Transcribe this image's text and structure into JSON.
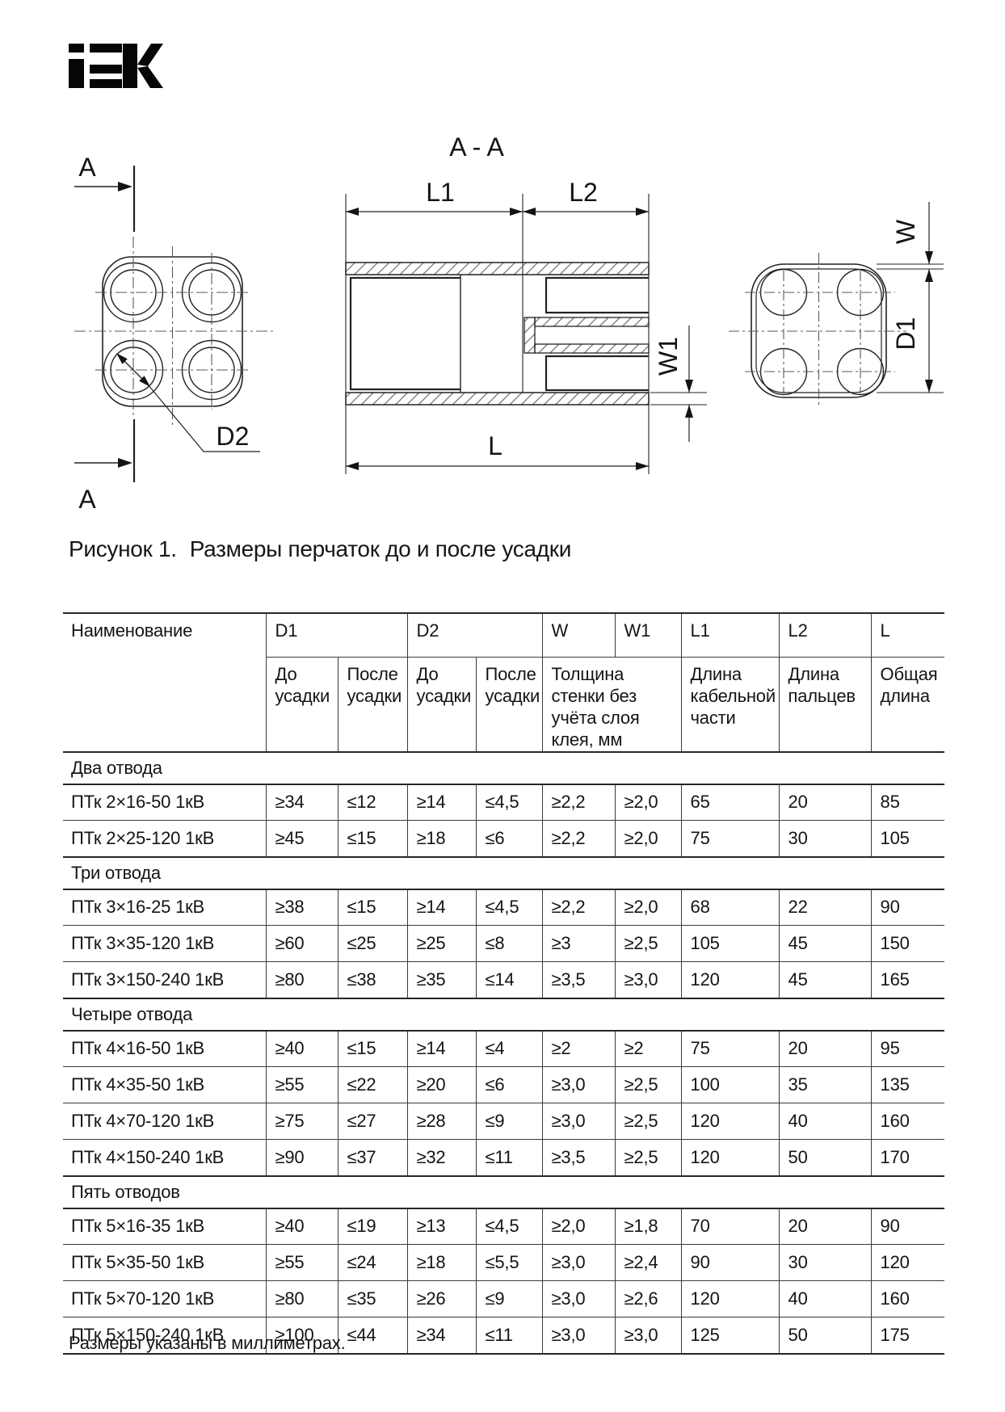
{
  "logo": {
    "brand": "IEK"
  },
  "figure": {
    "labels": {
      "section": "A",
      "view": "A - A",
      "l1": "L1",
      "l2": "L2",
      "l": "L",
      "w": "W",
      "w1": "W1",
      "d1": "D1",
      "d2": "D2"
    },
    "caption_prefix": "Рисунок 1.",
    "caption_text": "Размеры перчаток до и после усадки"
  },
  "table": {
    "header": {
      "name": "Наименование",
      "codes": {
        "d1": "D1",
        "d2": "D2",
        "w": "W",
        "w1": "W1",
        "l1": "L1",
        "l2": "L2",
        "l": "L"
      },
      "before": "До усадки",
      "after": "После усадки",
      "wall_note": "Толщина стенки без учёта слоя клея, мм",
      "cable_part": "Длина кабельной части",
      "fingers": "Длина пальцев",
      "total": "Общая длина"
    },
    "sections": [
      {
        "title": "Два отвода",
        "rows": [
          {
            "name": "ПТк 2×16-50 1кВ",
            "values": [
              "≥34",
              "≤12",
              "≥14",
              "≤4,5",
              "≥2,2",
              "≥2,0",
              "65",
              "20",
              "85"
            ]
          },
          {
            "name": "ПТк 2×25-120 1кВ",
            "values": [
              "≥45",
              "≤15",
              "≥18",
              "≤6",
              "≥2,2",
              "≥2,0",
              "75",
              "30",
              "105"
            ]
          }
        ]
      },
      {
        "title": "Три отвода",
        "rows": [
          {
            "name": "ПТк 3×16-25 1кВ",
            "values": [
              "≥38",
              "≤15",
              "≥14",
              "≤4,5",
              "≥2,2",
              "≥2,0",
              "68",
              "22",
              "90"
            ]
          },
          {
            "name": "ПТк 3×35-120 1кВ",
            "values": [
              "≥60",
              "≤25",
              "≥25",
              "≤8",
              "≥3",
              "≥2,5",
              "105",
              "45",
              "150"
            ]
          },
          {
            "name": "ПТк 3×150-240 1кВ",
            "values": [
              "≥80",
              "≤38",
              "≥35",
              "≤14",
              "≥3,5",
              "≥3,0",
              "120",
              "45",
              "165"
            ]
          }
        ]
      },
      {
        "title": "Четыре отвода",
        "rows": [
          {
            "name": "ПТк 4×16-50 1кВ",
            "values": [
              "≥40",
              "≤15",
              "≥14",
              "≤4",
              "≥2",
              "≥2",
              "75",
              "20",
              "95"
            ]
          },
          {
            "name": "ПТк 4×35-50 1кВ",
            "values": [
              "≥55",
              "≤22",
              "≥20",
              "≤6",
              "≥3,0",
              "≥2,5",
              "100",
              "35",
              "135"
            ]
          },
          {
            "name": "ПТк 4×70-120 1кВ",
            "values": [
              "≥75",
              "≤27",
              "≥28",
              "≤9",
              "≥3,0",
              "≥2,5",
              "120",
              "40",
              "160"
            ]
          },
          {
            "name": "ПТк 4×150-240 1кВ",
            "values": [
              "≥90",
              "≤37",
              "≥32",
              "≤11",
              "≥3,5",
              "≥2,5",
              "120",
              "50",
              "170"
            ]
          }
        ]
      },
      {
        "title": "Пять отводов",
        "rows": [
          {
            "name": "ПТк 5×16-35 1кВ",
            "values": [
              "≥40",
              "≤19",
              "≥13",
              "≤4,5",
              "≥2,0",
              "≥1,8",
              "70",
              "20",
              "90"
            ]
          },
          {
            "name": "ПТк 5×35-50 1кВ",
            "values": [
              "≥55",
              "≤24",
              "≥18",
              "≤5,5",
              "≥3,0",
              "≥2,4",
              "90",
              "30",
              "120"
            ]
          },
          {
            "name": "ПТк 5×70-120 1кВ",
            "values": [
              "≥80",
              "≤35",
              "≥26",
              "≤9",
              "≥3,0",
              "≥2,6",
              "120",
              "40",
              "160"
            ]
          },
          {
            "name": "ПТк 5×150-240 1кВ",
            "values": [
              "≥100",
              "≤44",
              "≥34",
              "≤11",
              "≥3,0",
              "≥3,0",
              "125",
              "50",
              "175"
            ]
          }
        ]
      }
    ]
  },
  "footnote": "Размеры указаны в миллиметрах.",
  "colors": {
    "ink": "#141414",
    "table_line": "#3a3a3a",
    "hatch": "#6a6a6a"
  }
}
